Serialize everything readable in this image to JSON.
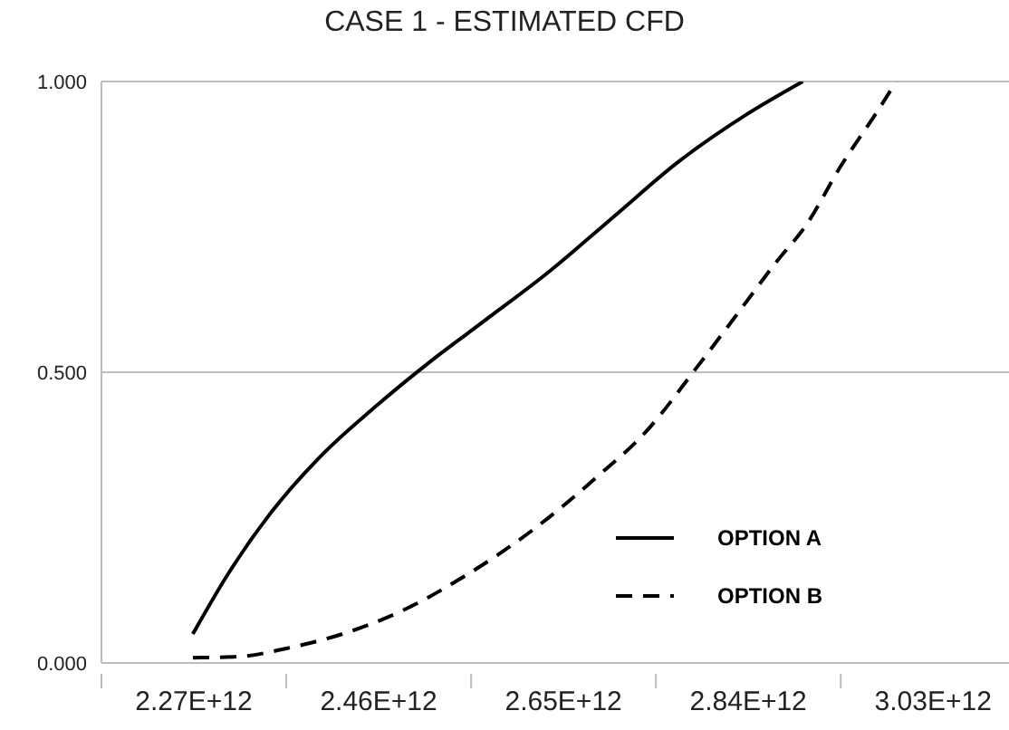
{
  "chart_data": {
    "type": "line",
    "title": "CASE 1 - ESTIMATED CFD",
    "series": [
      {
        "name": "OPTION A",
        "color": "#000000",
        "line_style": "solid",
        "x": [
          2269000000000,
          2304000000000,
          2350000000000,
          2403000000000,
          2456000000000,
          2512000000000,
          2570000000000,
          2636000000000,
          2702000000000,
          2769000000000,
          2836000000000,
          2896000000000
        ],
        "values": [
          0.05,
          0.15,
          0.26,
          0.36,
          0.44,
          0.517,
          0.59,
          0.674,
          0.768,
          0.863,
          0.941,
          1.0
        ]
      },
      {
        "name": "OPTION B",
        "color": "#000000",
        "line_style": "dashed",
        "x": [
          2269000000000,
          2317000000000,
          2365000000000,
          2423000000000,
          2483000000000,
          2549000000000,
          2617000000000,
          2683000000000,
          2736000000000,
          2786000000000,
          2829000000000,
          2869000000000,
          2899000000000,
          2936000000000,
          2972000000000,
          2992000000000
        ],
        "values": [
          0.009,
          0.011,
          0.025,
          0.05,
          0.089,
          0.15,
          0.227,
          0.318,
          0.4,
          0.506,
          0.601,
          0.69,
          0.752,
          0.857,
          0.947,
          1.0
        ]
      }
    ],
    "xlim": [
      2175000000000,
      3108000000000
    ],
    "xticks": [
      {
        "value": 2175000000000,
        "label": null
      },
      {
        "value": 2270000000000,
        "label": "2.27E+12"
      },
      {
        "value": 2365000000000,
        "label": null
      },
      {
        "value": 2460000000000,
        "label": "2.46E+12"
      },
      {
        "value": 2555000000000,
        "label": null
      },
      {
        "value": 2650000000000,
        "label": "2.65E+12"
      },
      {
        "value": 2745000000000,
        "label": null
      },
      {
        "value": 2840000000000,
        "label": "2.84E+12"
      },
      {
        "value": 2935000000000,
        "label": null
      },
      {
        "value": 3030000000000,
        "label": "3.03E+12"
      }
    ],
    "ylim": [
      0,
      1
    ],
    "yticks": [
      {
        "value": 0,
        "label": "0.000"
      },
      {
        "value": 0.5,
        "label": "0.500"
      },
      {
        "value": 1,
        "label": "1.000"
      }
    ],
    "grid": "y",
    "legend": "bottom right",
    "marker": "none"
  }
}
